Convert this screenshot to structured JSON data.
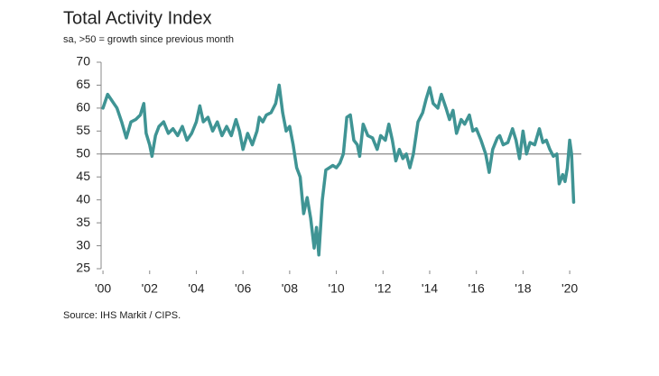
{
  "chart_data": {
    "type": "line",
    "title": "Total Activity Index",
    "subtitle": "sa, >50 = growth since previous month",
    "source": "Source: IHS Markit / CIPS.",
    "x": [
      2000.0,
      2000.2,
      2000.4,
      2000.6,
      2000.8,
      2001.0,
      2001.2,
      2001.4,
      2001.6,
      2001.75,
      2001.85,
      2002.0,
      2002.1,
      2002.25,
      2002.4,
      2002.6,
      2002.8,
      2003.0,
      2003.2,
      2003.4,
      2003.6,
      2003.8,
      2004.0,
      2004.15,
      2004.3,
      2004.5,
      2004.7,
      2004.9,
      2005.1,
      2005.3,
      2005.5,
      2005.7,
      2005.85,
      2006.0,
      2006.2,
      2006.4,
      2006.6,
      2006.7,
      2006.85,
      2007.0,
      2007.2,
      2007.4,
      2007.55,
      2007.7,
      2007.85,
      2008.0,
      2008.15,
      2008.3,
      2008.45,
      2008.6,
      2008.75,
      2008.9,
      2009.05,
      2009.15,
      2009.25,
      2009.4,
      2009.55,
      2009.7,
      2009.85,
      2010.0,
      2010.15,
      2010.3,
      2010.45,
      2010.6,
      2010.75,
      2010.9,
      2011.0,
      2011.15,
      2011.35,
      2011.55,
      2011.75,
      2011.9,
      2012.1,
      2012.25,
      2012.4,
      2012.55,
      2012.7,
      2012.85,
      2013.0,
      2013.15,
      2013.3,
      2013.5,
      2013.7,
      2013.85,
      2014.0,
      2014.15,
      2014.35,
      2014.5,
      2014.7,
      2014.85,
      2015.0,
      2015.15,
      2015.35,
      2015.5,
      2015.7,
      2015.85,
      2016.0,
      2016.2,
      2016.4,
      2016.55,
      2016.7,
      2016.9,
      2017.0,
      2017.15,
      2017.35,
      2017.55,
      2017.7,
      2017.85,
      2018.0,
      2018.15,
      2018.3,
      2018.5,
      2018.7,
      2018.85,
      2019.0,
      2019.15,
      2019.3,
      2019.45,
      2019.55,
      2019.7,
      2019.8,
      2019.9,
      2020.0,
      2020.08,
      2020.17
    ],
    "series": [
      {
        "name": "Total Activity Index",
        "color": "#3f9494",
        "values": [
          60,
          63,
          61.5,
          60,
          57,
          53.5,
          57,
          57.5,
          58.5,
          61,
          54.5,
          52,
          49.5,
          54,
          56,
          57,
          54.5,
          55.5,
          54,
          56,
          53,
          54.5,
          57,
          60.5,
          57,
          58,
          55,
          57,
          54,
          56,
          54,
          57.5,
          55,
          51,
          54.5,
          52,
          55,
          58,
          57,
          58.5,
          59,
          61,
          65,
          59,
          55,
          56,
          52,
          47,
          45,
          37,
          40.5,
          36,
          29.5,
          34,
          28,
          40,
          46.5,
          47,
          47.5,
          47,
          48,
          50,
          58,
          58.5,
          53,
          52,
          49.5,
          56.5,
          54,
          53.5,
          51,
          54,
          53,
          56.5,
          53,
          48.5,
          51,
          49,
          50,
          47,
          50,
          57,
          59,
          62,
          64.5,
          61,
          60,
          63,
          60,
          57.5,
          59.5,
          54.5,
          57.5,
          56.5,
          58.5,
          55,
          55.5,
          53,
          50,
          46,
          51,
          53.5,
          54,
          52,
          52.5,
          55.5,
          53,
          49,
          55,
          50,
          52.5,
          52,
          55.5,
          52.5,
          53,
          51,
          49.5,
          50,
          43.5,
          45.5,
          44,
          47,
          53,
          50,
          39.5
        ]
      }
    ],
    "xlim": [
      1999.92,
      2020.5
    ],
    "xticks": [
      {
        "value": 2000,
        "label": "'00"
      },
      {
        "value": 2002,
        "label": "'02"
      },
      {
        "value": 2004,
        "label": "'04"
      },
      {
        "value": 2006,
        "label": "'06"
      },
      {
        "value": 2008,
        "label": "'08"
      },
      {
        "value": 2010,
        "label": "'10"
      },
      {
        "value": 2012,
        "label": "'12"
      },
      {
        "value": 2014,
        "label": "'14"
      },
      {
        "value": 2016,
        "label": "'16"
      },
      {
        "value": 2018,
        "label": "'18"
      },
      {
        "value": 2020,
        "label": "'20"
      }
    ],
    "ylim": [
      25,
      70
    ],
    "yticks": [
      25,
      30,
      35,
      40,
      45,
      50,
      55,
      60,
      65,
      70
    ],
    "reference_line": 50,
    "grid": false
  }
}
